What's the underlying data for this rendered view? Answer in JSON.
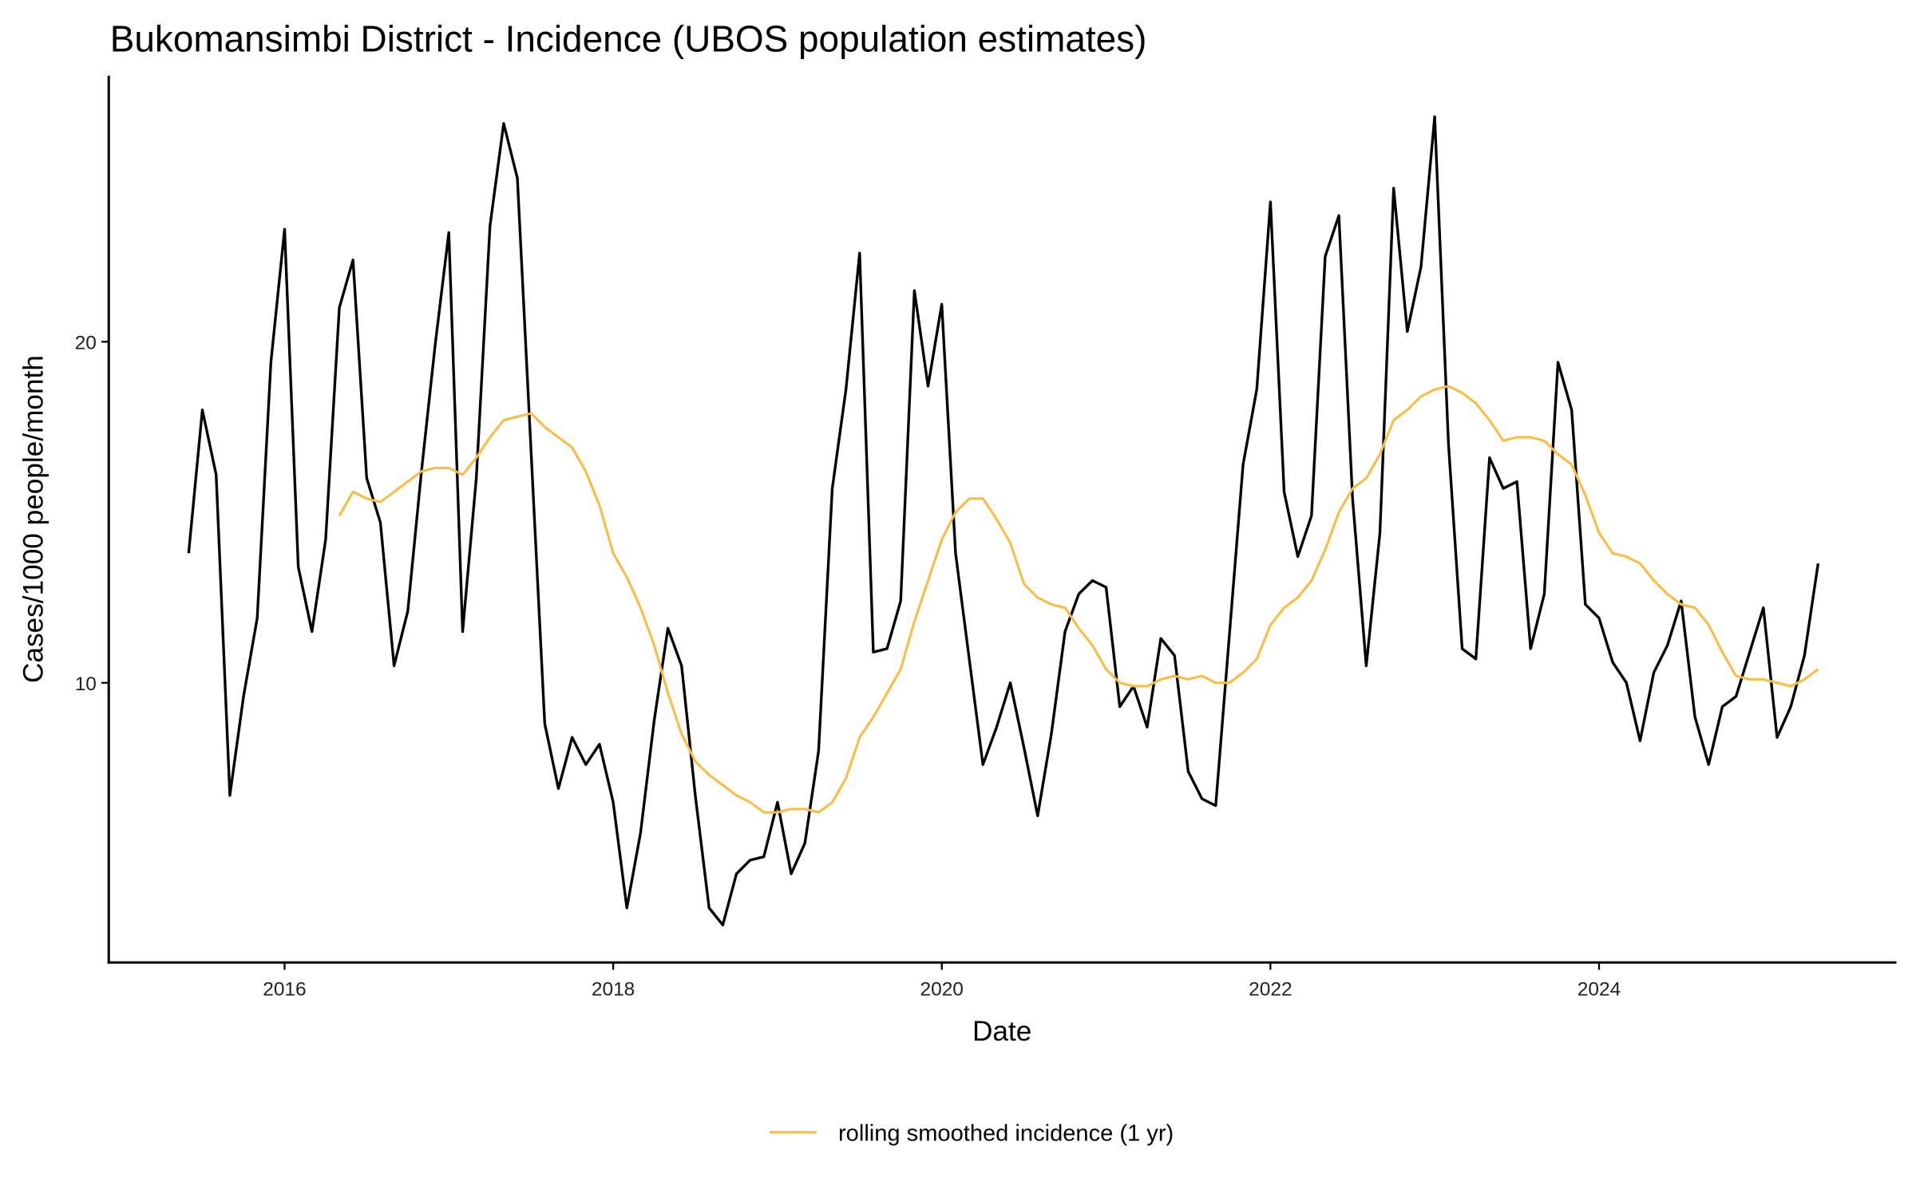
{
  "chart_data": {
    "type": "line",
    "title": "Bukomansimbi District - Incidence (UBOS population estimates)",
    "xlabel": "Date",
    "ylabel": "Cases/1000 people/month",
    "x_ticks": [
      2016,
      2018,
      2020,
      2022,
      2024
    ],
    "y_ticks": [
      10,
      20
    ],
    "xlim": [
      2014.93,
      2025.81
    ],
    "ylim": [
      1.8,
      27.8
    ],
    "grid": false,
    "legend": {
      "placement": "bottom",
      "entries": [
        "rolling smoothed incidence (1 yr)"
      ]
    },
    "series": [
      {
        "name": "incidence",
        "color": "#000000",
        "start": [
          2015,
          6
        ],
        "frequency": "monthly",
        "values": [
          13.8,
          18.0,
          16.1,
          6.7,
          9.6,
          11.9,
          19.4,
          23.3,
          13.4,
          11.5,
          14.2,
          21.0,
          22.4,
          16.0,
          14.7,
          10.5,
          12.1,
          16.2,
          19.9,
          23.2,
          11.5,
          16.0,
          23.4,
          26.4,
          24.8,
          16.8,
          8.8,
          6.9,
          8.4,
          7.6,
          8.2,
          6.5,
          3.4,
          5.6,
          8.9,
          11.6,
          10.5,
          6.7,
          3.4,
          2.9,
          4.4,
          4.8,
          4.9,
          6.5,
          4.4,
          5.3,
          8.0,
          15.7,
          18.6,
          22.6,
          10.9,
          11.0,
          12.4,
          21.5,
          18.7,
          21.1,
          13.8,
          10.7,
          7.6,
          8.7,
          10.0,
          8.1,
          6.1,
          8.5,
          11.5,
          12.6,
          13.0,
          12.8,
          9.3,
          9.9,
          8.7,
          11.3,
          10.8,
          7.4,
          6.6,
          6.4,
          11.4,
          16.4,
          18.6,
          24.1,
          15.6,
          13.7,
          14.9,
          22.5,
          23.7,
          15.4,
          10.5,
          14.4,
          24.5,
          20.3,
          22.2,
          26.6,
          17.0,
          11.0,
          10.7,
          16.6,
          15.7,
          15.9,
          11.0,
          12.6,
          19.4,
          18.0,
          12.3,
          11.9,
          10.6,
          10.0,
          8.3,
          10.3,
          11.1,
          12.4,
          9.0,
          7.6,
          9.3,
          9.6,
          10.9,
          12.2,
          8.4,
          9.3,
          10.8,
          13.5
        ]
      },
      {
        "name": "rolling smoothed incidence (1 yr)",
        "color": "#FBBC42",
        "start": [
          2016,
          5
        ],
        "frequency": "monthly",
        "values": [
          14.9,
          15.6,
          15.4,
          15.3,
          15.6,
          15.9,
          16.2,
          16.3,
          16.3,
          16.1,
          16.6,
          17.2,
          17.7,
          17.8,
          17.9,
          17.5,
          17.2,
          16.9,
          16.2,
          15.2,
          13.8,
          13.1,
          12.2,
          11.1,
          9.7,
          8.5,
          7.7,
          7.3,
          7.0,
          6.7,
          6.5,
          6.2,
          6.2,
          6.3,
          6.3,
          6.2,
          6.5,
          7.2,
          8.4,
          9.0,
          9.7,
          10.4,
          11.8,
          13.0,
          14.2,
          15.0,
          15.4,
          15.4,
          14.8,
          14.1,
          12.9,
          12.5,
          12.3,
          12.2,
          11.6,
          11.1,
          10.4,
          10.0,
          9.9,
          9.9,
          10.1,
          10.2,
          10.1,
          10.2,
          10.0,
          10.0,
          10.3,
          10.7,
          11.7,
          12.2,
          12.5,
          13.0,
          13.9,
          15.0,
          15.7,
          16.0,
          16.7,
          17.7,
          18.0,
          18.4,
          18.6,
          18.7,
          18.5,
          18.2,
          17.7,
          17.1,
          17.2,
          17.2,
          17.1,
          16.7,
          16.4,
          15.5,
          14.4,
          13.8,
          13.7,
          13.5,
          13.0,
          12.6,
          12.3,
          12.2,
          11.7,
          10.9,
          10.2,
          10.1,
          10.1,
          10.0,
          9.9,
          10.1,
          10.4
        ]
      }
    ]
  }
}
